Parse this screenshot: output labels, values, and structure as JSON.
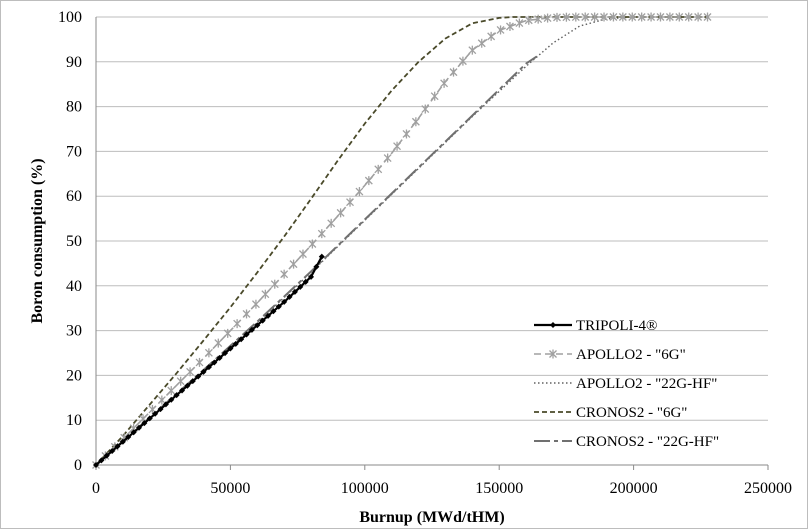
{
  "chart_data": {
    "type": "line",
    "xlabel": "Burnup (MWd/tHM)",
    "ylabel": "Boron consumption (%)",
    "xlim": [
      0,
      250000
    ],
    "ylim": [
      0,
      100
    ],
    "x_ticks": [
      "0",
      "50000",
      "100000",
      "150000",
      "200000",
      "250000"
    ],
    "y_ticks": [
      "0",
      "10",
      "20",
      "30",
      "40",
      "50",
      "60",
      "70",
      "80",
      "90",
      "100"
    ],
    "grid": "horizontal",
    "legend_position": "bottom-right",
    "series": [
      {
        "name": "TRIPOLI-4®",
        "color": "#000000",
        "style": "solid-diamond",
        "points": [
          [
            0,
            0
          ],
          [
            5000,
            2.6
          ],
          [
            10000,
            5.2
          ],
          [
            15000,
            7.8
          ],
          [
            20000,
            10.4
          ],
          [
            25000,
            13.0
          ],
          [
            30000,
            15.6
          ],
          [
            35000,
            18.2
          ],
          [
            40000,
            20.8
          ],
          [
            45000,
            23.4
          ],
          [
            50000,
            26.0
          ],
          [
            55000,
            28.6
          ],
          [
            60000,
            31.2
          ],
          [
            65000,
            33.8
          ],
          [
            70000,
            36.4
          ],
          [
            75000,
            39.2
          ],
          [
            80000,
            42.0
          ],
          [
            84000,
            46.5
          ]
        ]
      },
      {
        "name": "APOLLO2 - \"6G\"",
        "color": "#a0a0a0",
        "style": "dash-star",
        "points": [
          [
            0,
            0
          ],
          [
            10000,
            5.8
          ],
          [
            20000,
            11.8
          ],
          [
            30000,
            17.8
          ],
          [
            40000,
            23.8
          ],
          [
            50000,
            30.0
          ],
          [
            60000,
            36.2
          ],
          [
            70000,
            42.6
          ],
          [
            80000,
            49.0
          ],
          [
            90000,
            55.6
          ],
          [
            100000,
            62.4
          ],
          [
            110000,
            69.6
          ],
          [
            120000,
            77.4
          ],
          [
            130000,
            85.6
          ],
          [
            140000,
            92.6
          ],
          [
            150000,
            97.0
          ],
          [
            160000,
            99.2
          ],
          [
            170000,
            99.9
          ],
          [
            180000,
            100
          ],
          [
            200000,
            100
          ],
          [
            228000,
            100
          ]
        ]
      },
      {
        "name": "APOLLO2 - \"22G-HF\"",
        "color": "#606060",
        "style": "dotted",
        "points": [
          [
            0,
            0
          ],
          [
            20000,
            10.5
          ],
          [
            40000,
            21.0
          ],
          [
            60000,
            31.8
          ],
          [
            80000,
            43.0
          ],
          [
            100000,
            54.6
          ],
          [
            120000,
            66.2
          ],
          [
            140000,
            77.8
          ],
          [
            160000,
            89.0
          ],
          [
            170000,
            94.2
          ],
          [
            180000,
            98.0
          ],
          [
            190000,
            99.6
          ],
          [
            200000,
            100
          ],
          [
            228000,
            100
          ]
        ]
      },
      {
        "name": "CRONOS2 - \"6G\"",
        "color": "#4a4a2a",
        "style": "short-dash",
        "points": [
          [
            0,
            0
          ],
          [
            10000,
            6.5
          ],
          [
            20000,
            13.5
          ],
          [
            30000,
            20.5
          ],
          [
            40000,
            27.8
          ],
          [
            50000,
            35.2
          ],
          [
            60000,
            43.0
          ],
          [
            70000,
            51.0
          ],
          [
            80000,
            59.4
          ],
          [
            90000,
            68.0
          ],
          [
            100000,
            76.2
          ],
          [
            110000,
            83.6
          ],
          [
            120000,
            90.0
          ],
          [
            130000,
            95.2
          ],
          [
            140000,
            98.6
          ],
          [
            150000,
            99.8
          ],
          [
            155000,
            100
          ],
          [
            200000,
            100
          ],
          [
            228000,
            100
          ]
        ]
      },
      {
        "name": "CRONOS2 - \"22G-HF\"",
        "color": "#707070",
        "style": "long-dash",
        "points": [
          [
            0,
            0
          ],
          [
            20000,
            10.6
          ],
          [
            40000,
            21.2
          ],
          [
            60000,
            32.0
          ],
          [
            80000,
            43.2
          ],
          [
            100000,
            54.8
          ],
          [
            120000,
            66.4
          ],
          [
            140000,
            78.0
          ],
          [
            160000,
            89.6
          ],
          [
            164000,
            91.2
          ]
        ]
      }
    ]
  }
}
